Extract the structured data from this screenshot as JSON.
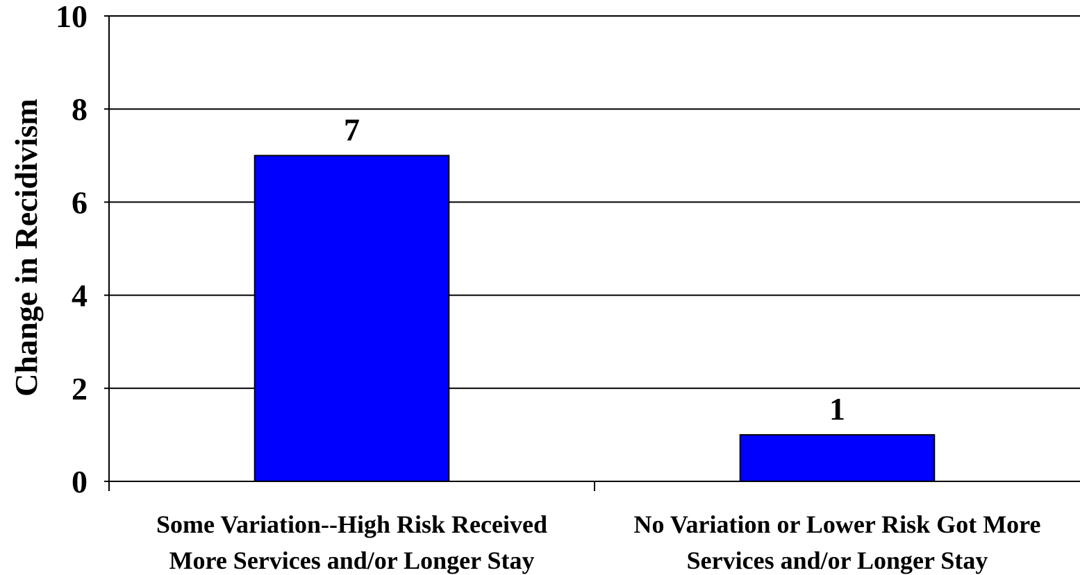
{
  "chart_data": {
    "type": "bar",
    "title": "",
    "xlabel": "",
    "ylabel": "Change in Recidivism",
    "ylim": [
      0,
      10
    ],
    "yticks": [
      0,
      2,
      4,
      6,
      8,
      10
    ],
    "grid": true,
    "legend": "none",
    "categories": [
      [
        "Some Variation--High Risk Received",
        "More Services and/or Longer Stay"
      ],
      [
        "No Variation or Lower Risk Got More",
        "Services and/or Longer Stay"
      ]
    ],
    "values": [
      7,
      1
    ],
    "data_labels": [
      "7",
      "1"
    ],
    "bar_color": "#0000FF",
    "bar_outline_color": "#000000"
  }
}
